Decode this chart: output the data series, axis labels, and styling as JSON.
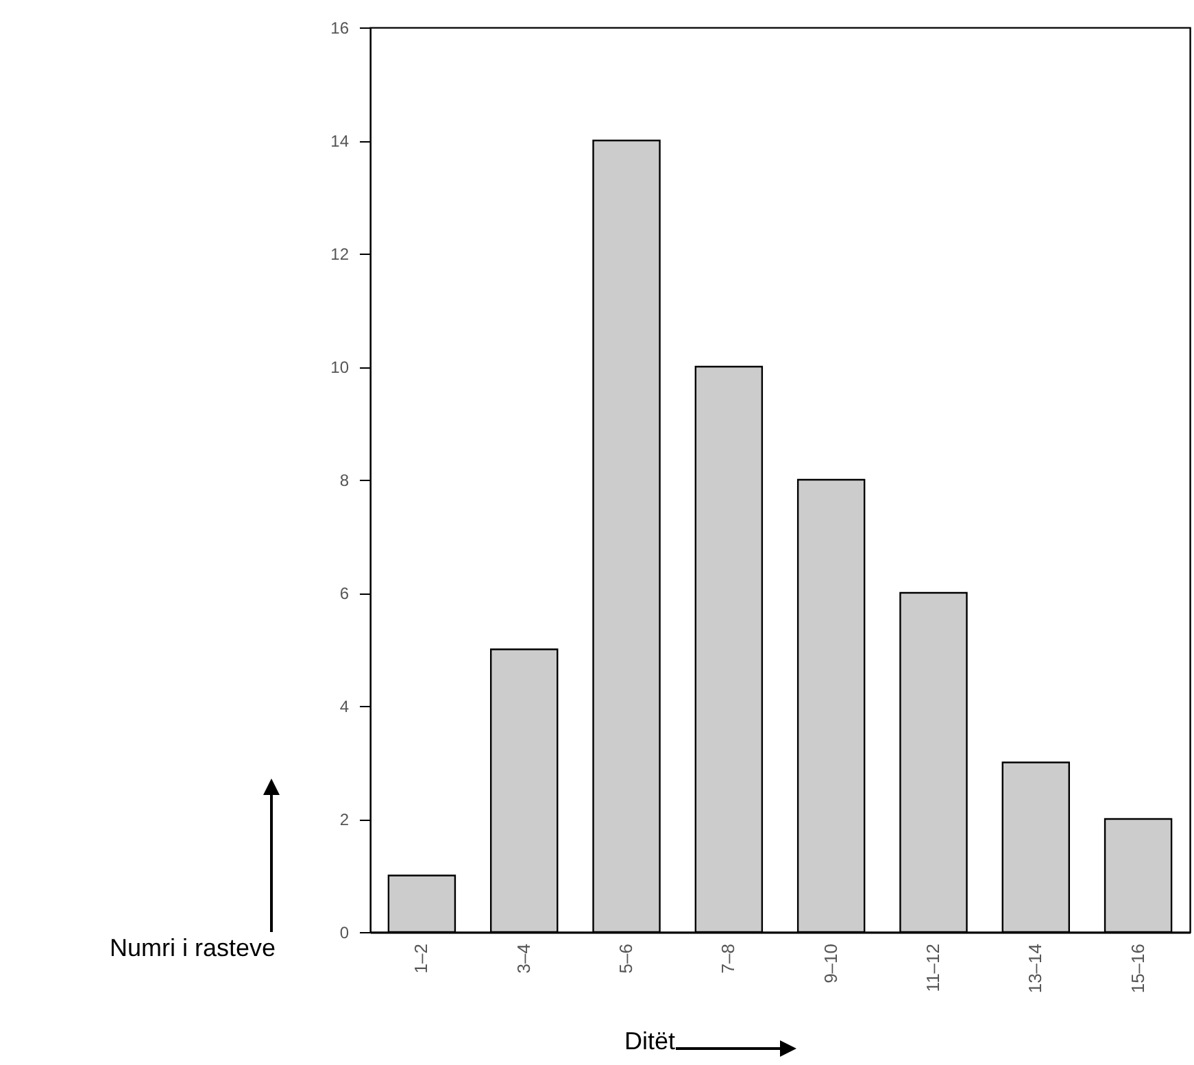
{
  "chart_data": {
    "type": "bar",
    "xlabel": "Ditët",
    "ylabel": "Numri i rasteve",
    "categories": [
      "1–2",
      "3–4",
      "5–6",
      "7–8",
      "9–10",
      "11–12",
      "13–14",
      "15–16"
    ],
    "values": [
      1,
      5,
      14,
      10,
      8,
      6,
      3,
      2
    ],
    "color": "#cccccc",
    "ylim": [
      0,
      16
    ],
    "yticks": [
      0,
      2,
      4,
      6,
      8,
      10,
      12,
      14,
      16
    ],
    "grid": false
  }
}
